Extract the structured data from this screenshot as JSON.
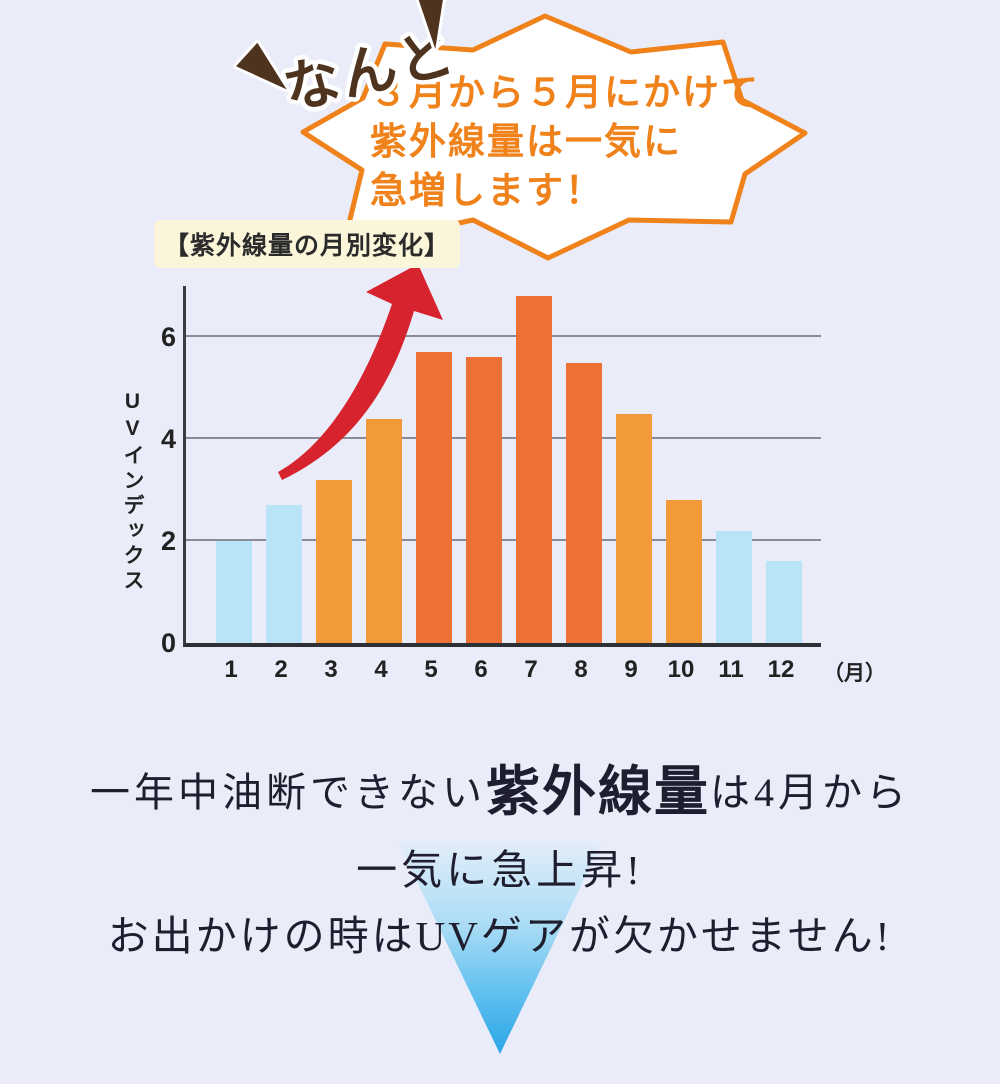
{
  "page": {
    "background_color": "#EAEDF9"
  },
  "callout": {
    "exclaim_text": "なんと",
    "lines": [
      "３月から５月にかけて",
      "紫外線量は一気に",
      "急増します！"
    ],
    "accent_color": "#F0821C",
    "exclaim_color": "#4E341F"
  },
  "chart": {
    "title": "【紫外線量の月別変化】",
    "y_axis_label": "UVインデックス",
    "x_unit_label": "（月）",
    "arrow_color": "#D6232E"
  },
  "chart_data": {
    "type": "bar",
    "title": "紫外線量の月別変化",
    "categories": [
      "1",
      "2",
      "3",
      "4",
      "5",
      "6",
      "7",
      "8",
      "9",
      "10",
      "11",
      "12"
    ],
    "values": [
      2.0,
      2.7,
      3.2,
      4.4,
      5.7,
      5.6,
      6.8,
      5.5,
      4.5,
      2.8,
      2.2,
      1.6
    ],
    "bar_colors": [
      "#B9E3F7",
      "#B9E3F7",
      "#F29A38",
      "#F29A38",
      "#ED7135",
      "#ED7135",
      "#ED7135",
      "#ED7135",
      "#F29A38",
      "#F29A38",
      "#B9E3F7",
      "#B9E3F7"
    ],
    "xlabel": "月",
    "ylabel": "UVインデックス",
    "ylim": [
      0,
      7
    ],
    "yticks": [
      0,
      2,
      4,
      6
    ],
    "grid": true,
    "legend": false,
    "annotation": "red swoosh arrow rising from month 2 toward month 4 peak season"
  },
  "footer": {
    "line1_pre": "一年中油断できない",
    "line1_emphasis": "紫外線量",
    "line1_post": "は4月から",
    "line2": "一気に急上昇!",
    "line3": "お出かけの時はUVゲアが欠かせません!",
    "triangle_color": "#2BA6E6"
  }
}
